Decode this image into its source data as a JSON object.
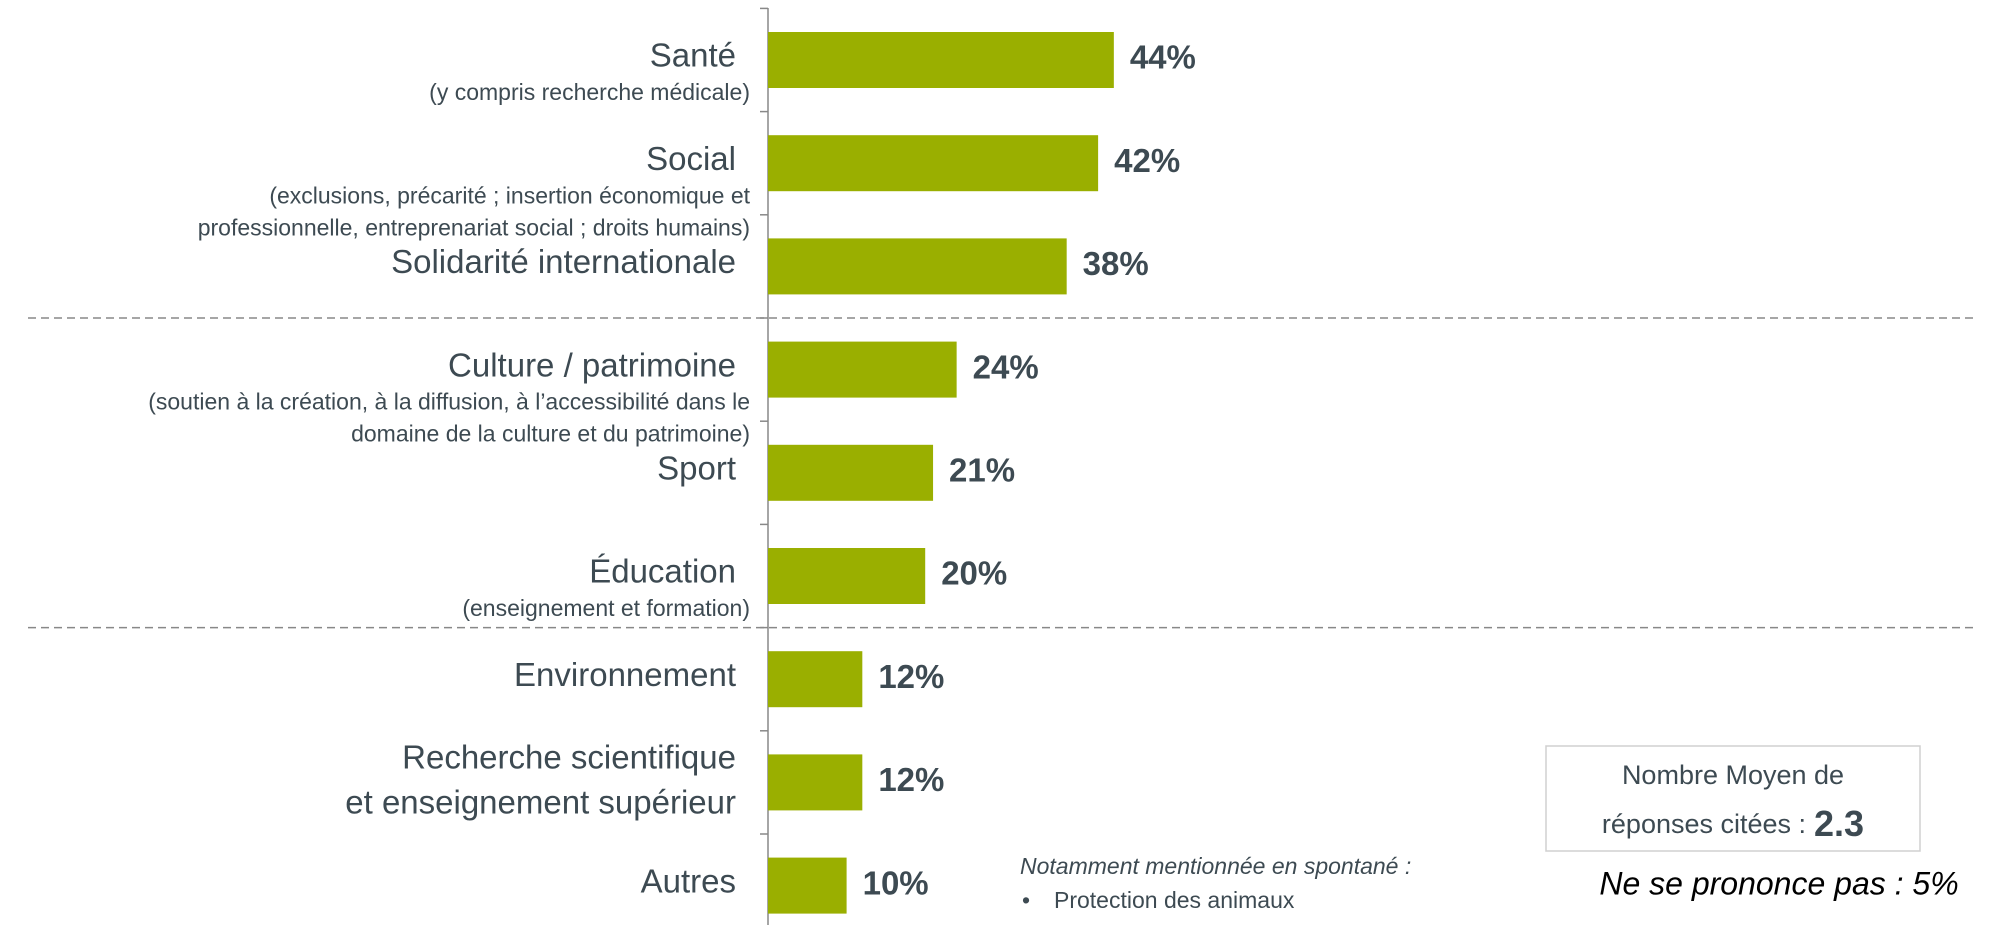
{
  "chart_data": {
    "type": "hbar",
    "categories": [
      "Santé",
      "Social",
      "Solidarité internationale",
      "Culture / patrimoine",
      "Sport",
      "Éducation",
      "Environnement",
      [
        "Recherche scientifique",
        "et enseignement supérieur"
      ],
      "Autres"
    ],
    "category_notes": [
      [
        "(y compris recherche médicale)"
      ],
      [
        "(exclusions, précarité ; insertion économique et",
        "professionnelle, entreprenariat social ; droits humains)"
      ],
      null,
      [
        "(soutien à la création, à la diffusion, à l’accessibilité dans le",
        "domaine de la culture et du patrimoine)"
      ],
      null,
      [
        "(enseignement et formation)"
      ],
      null,
      null,
      null
    ],
    "values": [
      44,
      42,
      38,
      24,
      21,
      20,
      12,
      12,
      10
    ],
    "value_labels": [
      "44%",
      "42%",
      "38%",
      "24%",
      "21%",
      "20%",
      "12%",
      "12%",
      "10%"
    ],
    "color": "#9aaf00",
    "xlim": [
      0,
      100
    ],
    "annotations": {
      "spontaneous_title": "Notamment mentionnée en spontané :",
      "spontaneous_items": [
        "Protection des animaux"
      ],
      "average_box": {
        "lines": [
          "Nombre Moyen de",
          "réponses citées :"
        ],
        "value": 2.3
      },
      "no_opinion": "Ne se prononce pas : 5%"
    }
  }
}
